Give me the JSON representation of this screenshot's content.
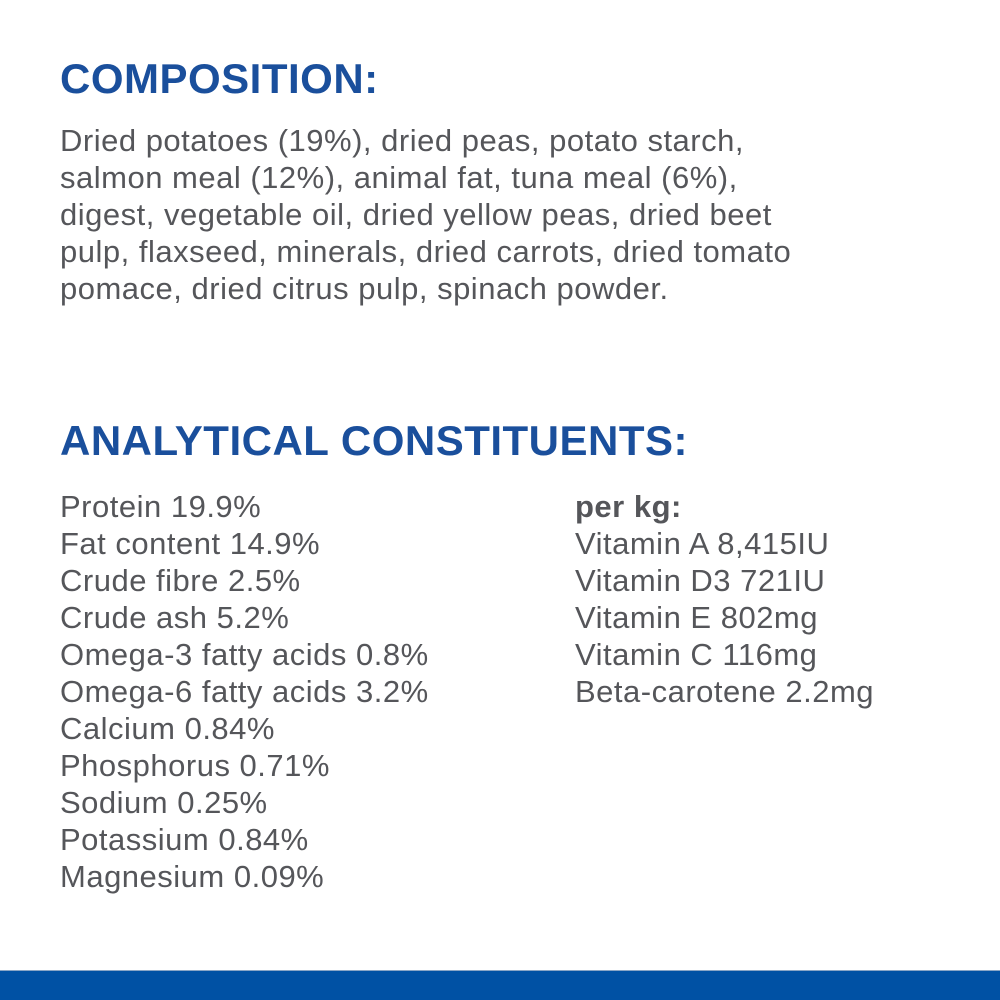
{
  "colors": {
    "heading_blue": "#1a4f9c",
    "bar_blue": "#0051a4",
    "body_gray": "#55565a",
    "background": "#ffffff"
  },
  "composition": {
    "heading": "COMPOSITION:",
    "lines": [
      "Dried potatoes (19%), dried peas, potato starch,",
      "salmon meal (12%), animal fat, tuna meal (6%),",
      "digest, vegetable oil, dried yellow peas, dried beet",
      "pulp, flaxseed, minerals, dried carrots, dried tomato",
      "pomace, dried citrus pulp, spinach powder."
    ]
  },
  "analytical": {
    "heading": "ANALYTICAL CONSTITUENTS:",
    "nutrients": [
      "Protein 19.9%",
      "Fat content 14.9%",
      "Crude fibre 2.5%",
      "Crude ash 5.2%",
      "Omega-3 fatty acids 0.8%",
      "Omega-6 fatty acids 3.2%",
      "Calcium 0.84%",
      "Phosphorus 0.71%",
      "Sodium 0.25%",
      "Potassium 0.84%",
      "Magnesium 0.09%"
    ],
    "per_kg": {
      "heading": "per kg:",
      "items": [
        "Vitamin A 8,415IU",
        "Vitamin D3 721IU",
        "Vitamin E 802mg",
        "Vitamin C 116mg",
        "Beta-carotene 2.2mg"
      ]
    }
  }
}
